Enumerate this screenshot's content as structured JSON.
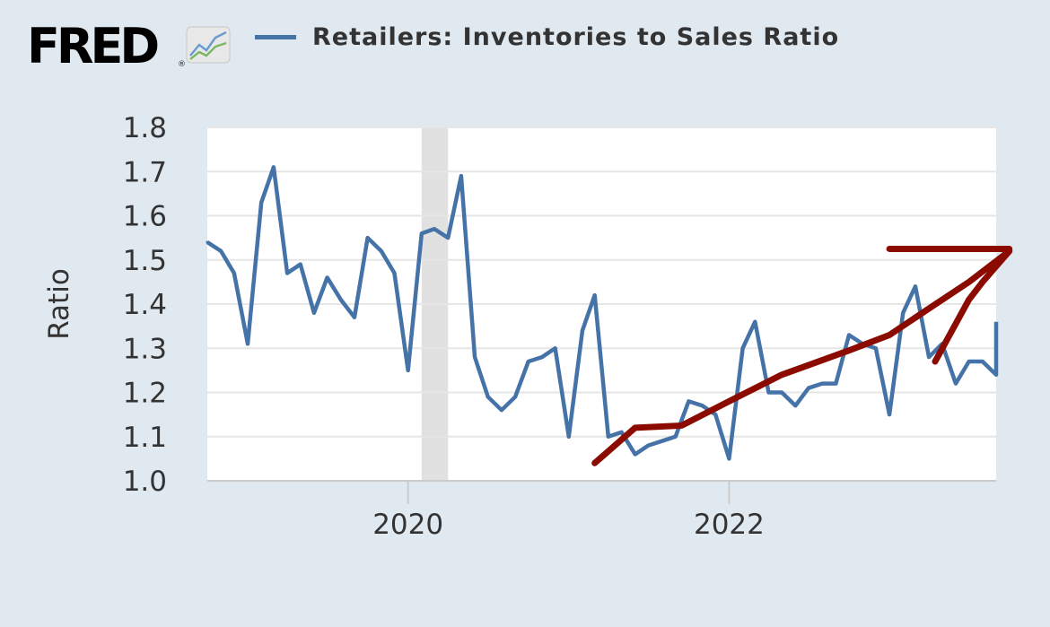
{
  "logo": {
    "text": "FRED",
    "icon": "fred-chart-icon"
  },
  "colors": {
    "background": "#e1e9f0",
    "plot_background": "#ffffff",
    "series": "#4572a7",
    "recession": "#e1e1e1",
    "annotation": "#8b0b00",
    "grid": "#e6e6e6"
  },
  "chart_data": {
    "type": "line",
    "title": "",
    "legend": "top-left",
    "xlabel": "",
    "ylabel": "Ratio",
    "ylim": [
      1.0,
      1.8
    ],
    "xlim": [
      "2018-10-01",
      "2023-09-01"
    ],
    "yticks": [
      "1.0",
      "1.1",
      "1.2",
      "1.3",
      "1.4",
      "1.5",
      "1.6",
      "1.7",
      "1.8"
    ],
    "xticks": [
      {
        "label": "2020",
        "date": "2020-01-01"
      },
      {
        "label": "2022",
        "date": "2022-01-01"
      }
    ],
    "grid": true,
    "recession_shading": [
      {
        "start": "2020-02-01",
        "end": "2020-04-01"
      }
    ],
    "series": [
      {
        "name": "Retailers: Inventories to Sales Ratio",
        "x": [
          "2018-10-01",
          "2018-11-01",
          "2018-12-01",
          "2019-01-01",
          "2019-02-01",
          "2019-03-01",
          "2019-04-01",
          "2019-05-01",
          "2019-06-01",
          "2019-07-01",
          "2019-08-01",
          "2019-09-01",
          "2019-10-01",
          "2019-11-01",
          "2019-12-01",
          "2020-01-01",
          "2020-02-01",
          "2020-03-01",
          "2020-04-01",
          "2020-05-01",
          "2020-06-01",
          "2020-07-01",
          "2020-08-01",
          "2020-09-01",
          "2020-10-01",
          "2020-11-01",
          "2020-12-01",
          "2021-01-01",
          "2021-02-01",
          "2021-03-01",
          "2021-04-01",
          "2021-05-01",
          "2021-06-01",
          "2021-07-01",
          "2021-08-01",
          "2021-09-01",
          "2021-10-01",
          "2021-11-01",
          "2021-12-01",
          "2022-01-01",
          "2022-02-01",
          "2022-03-01",
          "2022-04-01",
          "2022-05-01",
          "2022-06-01",
          "2022-07-01",
          "2022-08-01",
          "2022-09-01",
          "2022-10-01",
          "2022-11-01",
          "2022-12-01",
          "2023-01-01",
          "2023-02-01",
          "2023-03-01",
          "2023-04-01",
          "2023-05-01",
          "2023-06-01",
          "2023-07-01",
          "2023-08-01",
          "2023-09-01"
        ],
        "values": [
          1.54,
          1.52,
          1.47,
          1.31,
          1.63,
          1.71,
          1.47,
          1.49,
          1.38,
          1.46,
          1.41,
          1.37,
          1.55,
          1.52,
          1.47,
          1.25,
          1.56,
          1.57,
          1.55,
          1.69,
          1.28,
          1.19,
          1.16,
          1.19,
          1.27,
          1.28,
          1.3,
          1.1,
          1.34,
          1.42,
          1.1,
          1.11,
          1.06,
          1.08,
          1.09,
          1.1,
          1.18,
          1.17,
          1.15,
          1.05,
          1.3,
          1.36,
          1.2,
          1.2,
          1.17,
          1.21,
          1.22,
          1.22,
          1.33,
          1.31,
          1.3,
          1.15,
          1.38,
          1.44,
          1.28,
          1.31,
          1.22,
          1.27,
          1.27,
          1.24
        ]
      }
    ],
    "series_tail": {
      "date": "2023-09-15",
      "value": 1.36
    },
    "annotation_arrow": {
      "color": "#8b0b00",
      "points": [
        [
          "2021-03-01",
          1.04
        ],
        [
          "2021-06-01",
          1.12
        ],
        [
          "2021-09-15",
          1.125
        ],
        [
          "2022-01-01",
          1.18
        ],
        [
          "2022-05-01",
          1.24
        ],
        [
          "2022-10-01",
          1.295
        ],
        [
          "2023-01-01",
          1.33
        ],
        [
          "2023-04-01",
          1.39
        ],
        [
          "2023-07-01",
          1.45
        ],
        [
          "2023-10-01",
          1.52
        ]
      ],
      "head_top": [
        [
          "2023-01-01",
          1.525
        ],
        [
          "2023-10-01",
          1.525
        ]
      ],
      "head_bottom": [
        [
          "2023-10-01",
          1.52
        ],
        [
          "2023-08-01",
          1.45
        ],
        [
          "2023-07-01",
          1.41
        ],
        [
          "2023-04-15",
          1.27
        ]
      ]
    }
  }
}
